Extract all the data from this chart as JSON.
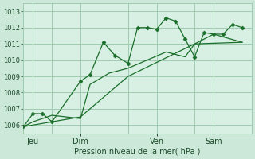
{
  "background_color": "#cce8d8",
  "plot_bg_color": "#d8f0e4",
  "grid_color": "#a0cbb0",
  "line_color": "#1a6e2a",
  "marker_color": "#1a6e2a",
  "xlabel_text": "Pression niveau de la mer( hPa )",
  "ylim": [
    1005.5,
    1013.5
  ],
  "yticks": [
    1006,
    1007,
    1008,
    1009,
    1010,
    1011,
    1012,
    1013
  ],
  "xlim": [
    0,
    12
  ],
  "day_labels": [
    "Jeu",
    "Dim",
    "Ven",
    "Sam"
  ],
  "day_positions": [
    0.5,
    3.0,
    7.0,
    10.0
  ],
  "vline_positions": [
    1.5,
    5.5,
    9.0
  ],
  "series1_x": [
    0.0,
    0.5,
    1.0,
    1.5,
    3.0,
    3.5,
    4.2,
    4.8,
    5.5,
    6.0,
    6.5,
    7.0,
    7.5,
    8.0,
    8.5,
    9.0,
    9.5,
    10.0,
    10.5,
    11.0,
    11.5
  ],
  "series1_y": [
    1005.9,
    1006.7,
    1006.7,
    1006.2,
    1008.7,
    1009.1,
    1011.1,
    1010.3,
    1009.8,
    1012.0,
    1012.0,
    1011.9,
    1012.6,
    1012.4,
    1011.3,
    1010.2,
    1011.7,
    1011.6,
    1011.6,
    1012.2,
    1012.0
  ],
  "series2_x": [
    0.0,
    0.5,
    1.5,
    3.0,
    3.5,
    4.5,
    5.5,
    6.5,
    7.5,
    8.5,
    9.0,
    10.0,
    11.5
  ],
  "series2_y": [
    1005.9,
    1006.2,
    1006.6,
    1006.4,
    1008.5,
    1009.2,
    1009.5,
    1010.0,
    1010.5,
    1010.2,
    1011.0,
    1011.6,
    1011.1
  ],
  "series3_x": [
    0.0,
    3.0,
    5.5,
    9.0,
    11.5
  ],
  "series3_y": [
    1005.9,
    1006.5,
    1009.0,
    1011.0,
    1011.1
  ],
  "ytick_fontsize": 6,
  "xtick_fontsize": 7,
  "xlabel_fontsize": 7
}
